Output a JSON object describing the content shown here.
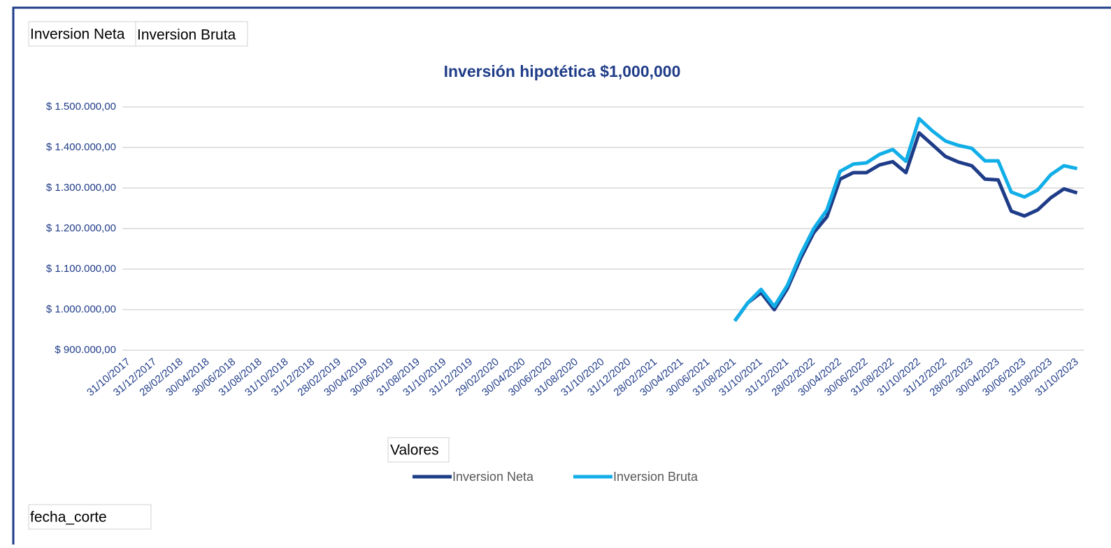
{
  "value_fields": [
    "Inversion Neta",
    "Inversion Bruta"
  ],
  "legend_field": "Valores",
  "axis_field": "fecha_corte",
  "chart_data": {
    "type": "line",
    "title": "Inversión hipotética $1,000,000",
    "categories": [
      "31/10/2017",
      null,
      "31/12/2017",
      null,
      "28/02/2018",
      null,
      "30/04/2018",
      null,
      "30/06/2018",
      null,
      "31/08/2018",
      null,
      "31/10/2018",
      null,
      "31/12/2018",
      null,
      "28/02/2019",
      null,
      "30/04/2019",
      null,
      "30/06/2019",
      null,
      "31/08/2019",
      null,
      "31/10/2019",
      null,
      "31/12/2019",
      null,
      "29/02/2020",
      null,
      "30/04/2020",
      null,
      "30/06/2020",
      null,
      "31/08/2020",
      null,
      "31/10/2020",
      null,
      "31/12/2020",
      null,
      "28/02/2021",
      null,
      "30/04/2021",
      null,
      "30/06/2021",
      null,
      "31/08/2021",
      null,
      "31/10/2021",
      null,
      "31/12/2021",
      null,
      "28/02/2022",
      null,
      "30/04/2022",
      null,
      "30/06/2022",
      null,
      "31/08/2022",
      null,
      "31/10/2022",
      null,
      "31/12/2022",
      null,
      "28/02/2023",
      null,
      "30/04/2023",
      null,
      "30/06/2023",
      null,
      "31/08/2023",
      null,
      "31/10/2023"
    ],
    "series": [
      {
        "name": "Inversion Neta",
        "color": "#1f3c88",
        "values": [
          null,
          null,
          null,
          null,
          null,
          null,
          null,
          null,
          null,
          null,
          null,
          null,
          null,
          null,
          null,
          null,
          null,
          null,
          null,
          null,
          null,
          null,
          null,
          null,
          null,
          null,
          null,
          null,
          null,
          null,
          null,
          null,
          null,
          null,
          null,
          null,
          null,
          null,
          null,
          null,
          null,
          null,
          null,
          null,
          null,
          null,
          972000,
          1017000,
          1042000,
          1000000,
          1052000,
          1126000,
          1190000,
          1229000,
          1322000,
          1338000,
          1338000,
          1357000,
          1365000,
          1338000,
          1436000,
          1407000,
          1378000,
          1364000,
          1355000,
          1322000,
          1320000,
          1243000,
          1231000,
          1246000,
          1276000,
          1298000,
          1288000
        ]
      },
      {
        "name": "Inversion Bruta",
        "color": "#12aee8",
        "values": [
          null,
          null,
          null,
          null,
          null,
          null,
          null,
          null,
          null,
          null,
          null,
          null,
          null,
          null,
          null,
          null,
          null,
          null,
          null,
          null,
          null,
          null,
          null,
          null,
          null,
          null,
          null,
          null,
          null,
          null,
          null,
          null,
          null,
          null,
          null,
          null,
          null,
          null,
          null,
          null,
          null,
          null,
          null,
          null,
          null,
          null,
          972000,
          1017000,
          1050000,
          1008000,
          1060000,
          1136000,
          1200000,
          1246000,
          1341000,
          1359000,
          1362000,
          1383000,
          1395000,
          1366000,
          1471000,
          1441000,
          1416000,
          1405000,
          1398000,
          1367000,
          1367000,
          1290000,
          1278000,
          1295000,
          1333000,
          1355000,
          1348000
        ]
      }
    ],
    "ylim": [
      900000,
      1500000
    ],
    "yticks": [
      {
        "value": 900000,
        "label": "$ 900.000,00"
      },
      {
        "value": 1000000,
        "label": "$ 1.000.000,00"
      },
      {
        "value": 1100000,
        "label": "$ 1.100.000,00"
      },
      {
        "value": 1200000,
        "label": "$ 1.200.000,00"
      },
      {
        "value": 1300000,
        "label": "$ 1.300.000,00"
      },
      {
        "value": 1400000,
        "label": "$ 1.400.000,00"
      },
      {
        "value": 1500000,
        "label": "$ 1.500.000,00"
      }
    ],
    "grid": true,
    "legend": "bottom"
  }
}
